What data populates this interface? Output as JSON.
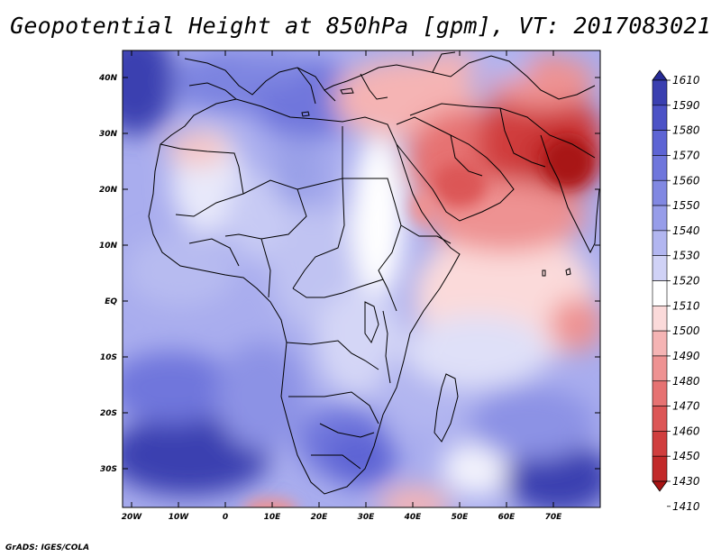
{
  "title": "Geopotential Height at 850hPa [gpm], VT: 2017083021",
  "credit": "GrADS: IGES/COLA",
  "map": {
    "lat_labels": [
      "40N",
      "30N",
      "20N",
      "10N",
      "EQ",
      "10S",
      "20S",
      "30S"
    ],
    "lon_labels": [
      "20W",
      "10W",
      "0",
      "10E",
      "20E",
      "30E",
      "40E",
      "50E",
      "60E",
      "70E"
    ]
  },
  "colorbar": {
    "levels": [
      "1610",
      "1590",
      "1580",
      "1570",
      "1560",
      "1550",
      "1540",
      "1530",
      "1520",
      "1510",
      "1500",
      "1490",
      "1480",
      "1470",
      "1460",
      "1450",
      "1430",
      "1410"
    ],
    "colors": [
      "#272b96",
      "#3a3fb0",
      "#4c52c6",
      "#5d64d4",
      "#6f76dc",
      "#8188e2",
      "#979de9",
      "#b2b6f0",
      "#d0d2f6",
      "#ffffff",
      "#fbdada",
      "#f5b4b4",
      "#ee9292",
      "#e67272",
      "#dc5656",
      "#d03e3e",
      "#c22a2a",
      "#a81414"
    ]
  },
  "colors": {
    "frame": "#000000",
    "background": "#ffffff"
  }
}
